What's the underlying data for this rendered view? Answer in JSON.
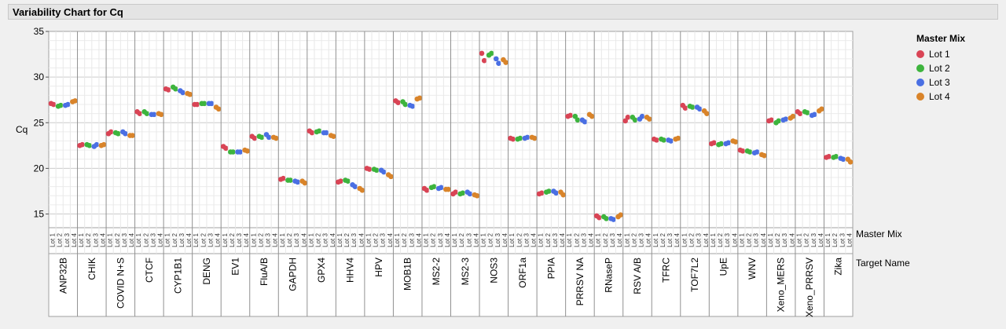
{
  "window": {
    "title": "Variability Chart for Cq"
  },
  "colors": {
    "Lot 1": "#d94455",
    "Lot 2": "#3db43d",
    "Lot 3": "#4a6fe3",
    "Lot 4": "#d9842a"
  },
  "chart_data": {
    "type": "scatter",
    "title": "Variability Chart for Cq",
    "ylabel": "Cq",
    "ylim": [
      13.5,
      35
    ],
    "yticks": [
      15,
      20,
      25,
      30,
      35
    ],
    "grid": true,
    "x_axis_rows": [
      "Master Mix",
      "Target Name"
    ],
    "lots": [
      "Lot 1",
      "Lot 2",
      "Lot 3",
      "Lot 4"
    ],
    "legend": {
      "title": "Master Mix",
      "entries": [
        "Lot 1",
        "Lot 2",
        "Lot 3",
        "Lot 4"
      ],
      "position": "top-right"
    },
    "targets": [
      {
        "name": "ANP32B",
        "values": [
          [
            27.1,
            27.0
          ],
          [
            26.8,
            26.9
          ],
          [
            26.9,
            27.0
          ],
          [
            27.3,
            27.4
          ]
        ]
      },
      {
        "name": "CHIK",
        "values": [
          [
            22.5,
            22.6
          ],
          [
            22.6,
            22.5
          ],
          [
            22.4,
            22.6
          ],
          [
            22.5,
            22.6
          ]
        ]
      },
      {
        "name": "COVID N+S",
        "values": [
          [
            23.8,
            24.0
          ],
          [
            23.9,
            23.8
          ],
          [
            24.0,
            23.8
          ],
          [
            23.6,
            23.6
          ]
        ]
      },
      {
        "name": "CTCF",
        "values": [
          [
            26.2,
            26.0
          ],
          [
            26.2,
            26.0
          ],
          [
            25.9,
            25.9
          ],
          [
            26.0,
            25.9
          ]
        ]
      },
      {
        "name": "CYP1B1",
        "values": [
          [
            28.7,
            28.6
          ],
          [
            28.9,
            28.7
          ],
          [
            28.5,
            28.3
          ],
          [
            28.2,
            28.1
          ]
        ]
      },
      {
        "name": "DENG",
        "values": [
          [
            27.0,
            27.0
          ],
          [
            27.1,
            27.1
          ],
          [
            27.1,
            27.1
          ],
          [
            26.7,
            26.5
          ]
        ]
      },
      {
        "name": "EV1",
        "values": [
          [
            22.4,
            22.2
          ],
          [
            21.8,
            21.8
          ],
          [
            21.8,
            21.8
          ],
          [
            22.0,
            21.9
          ]
        ]
      },
      {
        "name": "FluA/B",
        "values": [
          [
            23.5,
            23.3
          ],
          [
            23.5,
            23.4
          ],
          [
            23.7,
            23.4
          ],
          [
            23.4,
            23.3
          ]
        ]
      },
      {
        "name": "GAPDH",
        "values": [
          [
            18.8,
            18.9
          ],
          [
            18.7,
            18.7
          ],
          [
            18.6,
            18.5
          ],
          [
            18.6,
            18.4
          ]
        ]
      },
      {
        "name": "GPX4",
        "values": [
          [
            24.1,
            23.9
          ],
          [
            24.0,
            24.1
          ],
          [
            23.9,
            23.9
          ],
          [
            23.6,
            23.5
          ]
        ]
      },
      {
        "name": "HHV4",
        "values": [
          [
            18.5,
            18.6
          ],
          [
            18.7,
            18.6
          ],
          [
            18.2,
            18.0
          ],
          [
            17.8,
            17.6
          ]
        ]
      },
      {
        "name": "HPV",
        "values": [
          [
            20.0,
            19.9
          ],
          [
            19.9,
            19.8
          ],
          [
            19.8,
            19.6
          ],
          [
            19.3,
            19.1
          ]
        ]
      },
      {
        "name": "MOB1B",
        "values": [
          [
            27.4,
            27.2
          ],
          [
            27.3,
            27.0
          ],
          [
            26.9,
            26.8
          ],
          [
            27.6,
            27.7
          ]
        ]
      },
      {
        "name": "MS2-2",
        "values": [
          [
            17.8,
            17.6
          ],
          [
            17.9,
            18.0
          ],
          [
            17.8,
            17.9
          ],
          [
            17.7,
            17.7
          ]
        ]
      },
      {
        "name": "MS2-3",
        "values": [
          [
            17.2,
            17.4
          ],
          [
            17.2,
            17.3
          ],
          [
            17.4,
            17.2
          ],
          [
            17.1,
            17.0
          ]
        ]
      },
      {
        "name": "NOS3",
        "values": [
          [
            32.6,
            31.8
          ],
          [
            32.4,
            32.6
          ],
          [
            32.0,
            31.5
          ],
          [
            31.9,
            31.6
          ]
        ]
      },
      {
        "name": "ORF1a",
        "values": [
          [
            23.3,
            23.2
          ],
          [
            23.2,
            23.3
          ],
          [
            23.3,
            23.4
          ],
          [
            23.4,
            23.3
          ]
        ]
      },
      {
        "name": "PPIA",
        "values": [
          [
            17.2,
            17.3
          ],
          [
            17.4,
            17.5
          ],
          [
            17.5,
            17.3
          ],
          [
            17.4,
            17.1
          ]
        ]
      },
      {
        "name": "PRRSV NA",
        "values": [
          [
            25.7,
            25.8
          ],
          [
            25.7,
            25.3
          ],
          [
            25.3,
            25.1
          ],
          [
            25.9,
            25.7
          ]
        ]
      },
      {
        "name": "RNaseP",
        "values": [
          [
            14.8,
            14.6
          ],
          [
            14.7,
            14.5
          ],
          [
            14.5,
            14.4
          ],
          [
            14.7,
            14.9
          ]
        ]
      },
      {
        "name": "RSV A/B",
        "values": [
          [
            25.2,
            25.6
          ],
          [
            25.6,
            25.3
          ],
          [
            25.4,
            25.7
          ],
          [
            25.6,
            25.4
          ]
        ]
      },
      {
        "name": "TFRC",
        "values": [
          [
            23.2,
            23.1
          ],
          [
            23.2,
            23.1
          ],
          [
            23.1,
            23.0
          ],
          [
            23.2,
            23.3
          ]
        ]
      },
      {
        "name": "TOF7L2",
        "values": [
          [
            26.9,
            26.6
          ],
          [
            26.8,
            26.7
          ],
          [
            26.7,
            26.5
          ],
          [
            26.3,
            26.0
          ]
        ]
      },
      {
        "name": "UpE",
        "values": [
          [
            22.7,
            22.8
          ],
          [
            22.6,
            22.7
          ],
          [
            22.7,
            22.8
          ],
          [
            23.0,
            22.9
          ]
        ]
      },
      {
        "name": "WNV",
        "values": [
          [
            22.0,
            21.9
          ],
          [
            21.9,
            21.8
          ],
          [
            21.7,
            21.8
          ],
          [
            21.5,
            21.4
          ]
        ]
      },
      {
        "name": "Xeno_MERS",
        "values": [
          [
            25.2,
            25.3
          ],
          [
            25.0,
            25.2
          ],
          [
            25.3,
            25.4
          ],
          [
            25.5,
            25.7
          ]
        ]
      },
      {
        "name": "Xeno_PRRSV",
        "values": [
          [
            26.2,
            26.0
          ],
          [
            26.2,
            26.1
          ],
          [
            25.8,
            25.9
          ],
          [
            26.3,
            26.5
          ]
        ]
      },
      {
        "name": "Zika",
        "values": [
          [
            21.2,
            21.3
          ],
          [
            21.2,
            21.3
          ],
          [
            21.1,
            21.0
          ],
          [
            21.0,
            20.7
          ]
        ]
      }
    ]
  }
}
